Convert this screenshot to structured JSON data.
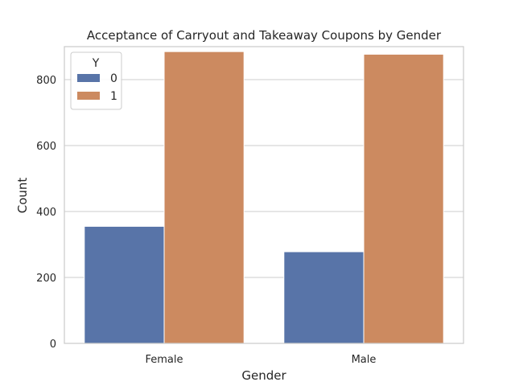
{
  "chart_data": {
    "type": "bar",
    "title": "Acceptance of Carryout and Takeaway Coupons by Gender",
    "xlabel": "Gender",
    "ylabel": "Count",
    "categories": [
      "Female",
      "Male"
    ],
    "series": [
      {
        "name": "0",
        "values": [
          355,
          278
        ],
        "color": "#5874a8"
      },
      {
        "name": "1",
        "values": [
          885,
          877
        ],
        "color": "#cc8a60"
      }
    ],
    "ylim": [
      0,
      900
    ],
    "yticks": [
      0,
      200,
      400,
      600,
      800
    ],
    "grid": "horizontal",
    "legend": {
      "title": "Y",
      "position": "top-left"
    }
  }
}
